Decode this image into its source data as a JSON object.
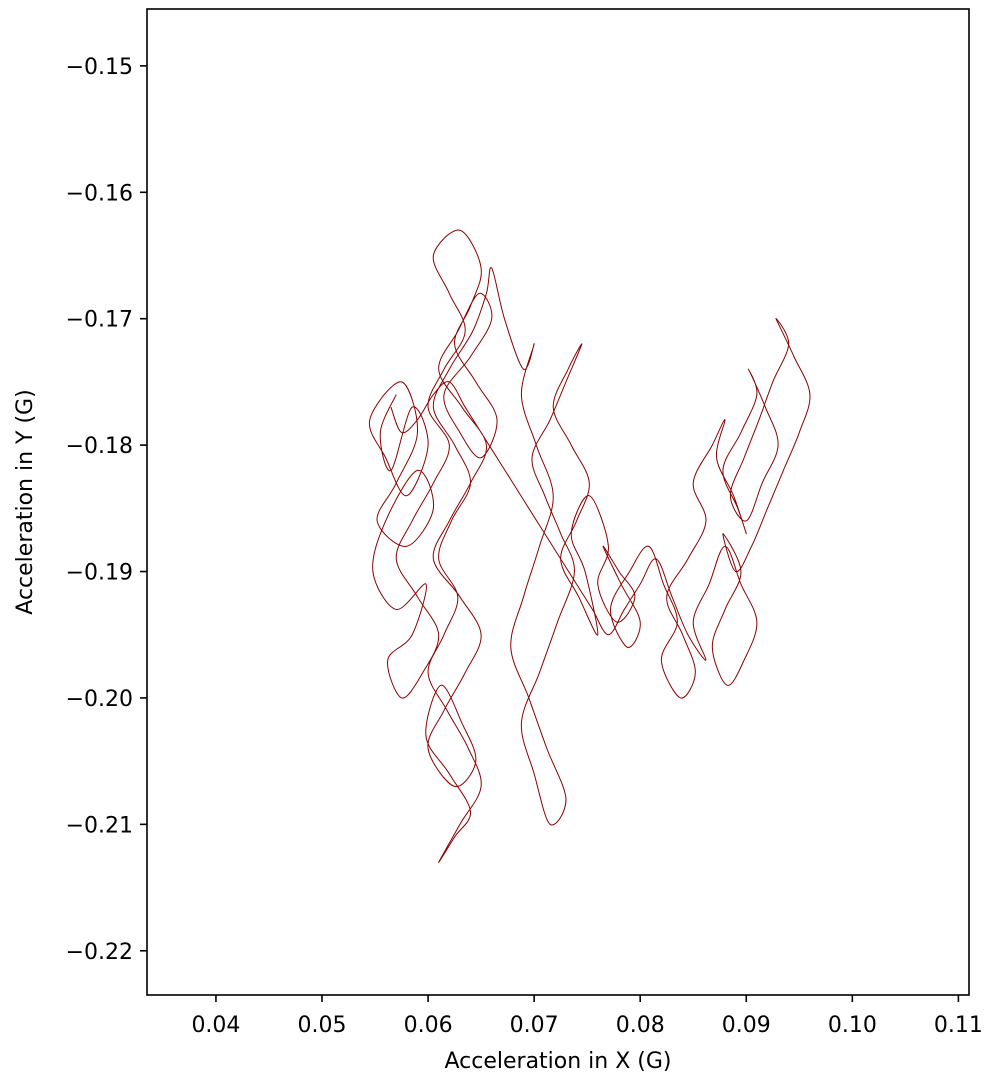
{
  "chart_data": {
    "type": "line",
    "xlabel": "Acceleration in X (G)",
    "ylabel": "Acceleration in Y (G)",
    "xlim": [
      0.0335,
      0.111
    ],
    "ylim": [
      -0.2235,
      -0.1455
    ],
    "xticks": [
      0.04,
      0.05,
      0.06,
      0.07,
      0.08,
      0.09,
      0.1,
      0.11
    ],
    "xtick_labels": [
      "0.04",
      "0.05",
      "0.06",
      "0.07",
      "0.08",
      "0.09",
      "0.10",
      "0.11"
    ],
    "yticks": [
      -0.15,
      -0.16,
      -0.17,
      -0.18,
      -0.19,
      -0.2,
      -0.21,
      -0.22
    ],
    "ytick_labels": [
      "−0.15",
      "−0.16",
      "−0.17",
      "−0.18",
      "−0.19",
      "−0.20",
      "−0.21",
      "−0.22"
    ],
    "grid": false,
    "series": [
      {
        "color": "#8b0000",
        "x": [
          0.057,
          0.0555,
          0.0565,
          0.0585,
          0.06,
          0.058,
          0.056,
          0.0545,
          0.0575,
          0.059,
          0.057,
          0.0552,
          0.058,
          0.0605,
          0.059,
          0.056,
          0.0548,
          0.057,
          0.0598,
          0.0585,
          0.0562,
          0.0575,
          0.0595,
          0.061,
          0.059,
          0.057,
          0.0585,
          0.0605,
          0.062,
          0.06,
          0.0615,
          0.0635,
          0.062,
          0.0605,
          0.063,
          0.065,
          0.064,
          0.0625,
          0.0645,
          0.0665,
          0.065,
          0.063,
          0.0615,
          0.064,
          0.066,
          0.0648,
          0.0628,
          0.061,
          0.0632,
          0.0655,
          0.064,
          0.062,
          0.0605,
          0.063,
          0.065,
          0.0635,
          0.0615,
          0.06,
          0.0625,
          0.0645,
          0.0632,
          0.0612,
          0.0598,
          0.062,
          0.064,
          0.0625,
          0.061,
          0.063,
          0.065,
          0.0638,
          0.0618,
          0.06,
          0.0615,
          0.0628,
          0.061,
          0.0622,
          0.064,
          0.0625,
          0.0605,
          0.062,
          0.0642,
          0.0655,
          0.066,
          0.0672,
          0.069,
          0.07,
          0.0688,
          0.0702,
          0.0718,
          0.0705,
          0.069,
          0.0678,
          0.0695,
          0.0712,
          0.073,
          0.0715,
          0.07,
          0.0688,
          0.0705,
          0.0722,
          0.0738,
          0.0725,
          0.071,
          0.0698,
          0.0715,
          0.073,
          0.0745,
          0.0732,
          0.0718,
          0.0735,
          0.0752,
          0.074,
          0.0725,
          0.0742,
          0.076,
          0.0748,
          0.0735,
          0.0752,
          0.077,
          0.076,
          0.0778,
          0.0795,
          0.078,
          0.0765,
          0.0782,
          0.08,
          0.0788,
          0.0772,
          0.079,
          0.0808,
          0.0822,
          0.0835,
          0.082,
          0.0838,
          0.0852,
          0.084,
          0.0825,
          0.0845,
          0.0862,
          0.085,
          0.0868,
          0.088,
          0.0872,
          0.0888,
          0.09,
          0.0892,
          0.0878,
          0.0895,
          0.091,
          0.0902,
          0.0918,
          0.093,
          0.0915,
          0.09,
          0.0885,
          0.0898,
          0.0912,
          0.0925,
          0.094,
          0.0928,
          0.0945,
          0.096,
          0.095,
          0.0935,
          0.092,
          0.0905,
          0.089,
          0.0878,
          0.0895,
          0.088,
          0.0868,
          0.0882,
          0.0898,
          0.091,
          0.0895,
          0.088,
          0.0865,
          0.085,
          0.0862,
          0.0845,
          0.083,
          0.0815,
          0.08,
          0.0785,
          0.077,
          0.0755,
          0.074,
          0.0725,
          0.071,
          0.0695,
          0.068,
          0.0665,
          0.065,
          0.0635,
          0.062,
          0.0605,
          0.059,
          0.0575,
          0.0565
        ],
        "y": [
          -0.176,
          -0.179,
          -0.182,
          -0.177,
          -0.18,
          -0.184,
          -0.181,
          -0.178,
          -0.175,
          -0.179,
          -0.183,
          -0.186,
          -0.188,
          -0.185,
          -0.182,
          -0.186,
          -0.19,
          -0.193,
          -0.191,
          -0.195,
          -0.197,
          -0.2,
          -0.198,
          -0.195,
          -0.192,
          -0.189,
          -0.186,
          -0.183,
          -0.18,
          -0.177,
          -0.174,
          -0.171,
          -0.168,
          -0.165,
          -0.163,
          -0.166,
          -0.169,
          -0.172,
          -0.175,
          -0.178,
          -0.181,
          -0.179,
          -0.176,
          -0.173,
          -0.17,
          -0.168,
          -0.171,
          -0.174,
          -0.177,
          -0.18,
          -0.183,
          -0.186,
          -0.189,
          -0.192,
          -0.195,
          -0.198,
          -0.201,
          -0.204,
          -0.207,
          -0.205,
          -0.202,
          -0.199,
          -0.203,
          -0.206,
          -0.209,
          -0.211,
          -0.213,
          -0.21,
          -0.207,
          -0.204,
          -0.201,
          -0.198,
          -0.195,
          -0.192,
          -0.189,
          -0.186,
          -0.183,
          -0.18,
          -0.177,
          -0.174,
          -0.171,
          -0.168,
          -0.166,
          -0.17,
          -0.174,
          -0.172,
          -0.176,
          -0.18,
          -0.184,
          -0.188,
          -0.192,
          -0.196,
          -0.2,
          -0.204,
          -0.208,
          -0.21,
          -0.206,
          -0.202,
          -0.198,
          -0.194,
          -0.19,
          -0.187,
          -0.184,
          -0.181,
          -0.178,
          -0.175,
          -0.172,
          -0.174,
          -0.177,
          -0.18,
          -0.183,
          -0.186,
          -0.189,
          -0.192,
          -0.195,
          -0.19,
          -0.187,
          -0.184,
          -0.188,
          -0.191,
          -0.194,
          -0.192,
          -0.19,
          -0.188,
          -0.191,
          -0.194,
          -0.196,
          -0.193,
          -0.19,
          -0.188,
          -0.191,
          -0.194,
          -0.197,
          -0.2,
          -0.198,
          -0.195,
          -0.192,
          -0.189,
          -0.186,
          -0.183,
          -0.18,
          -0.178,
          -0.181,
          -0.184,
          -0.187,
          -0.185,
          -0.182,
          -0.179,
          -0.176,
          -0.174,
          -0.177,
          -0.18,
          -0.183,
          -0.186,
          -0.184,
          -0.181,
          -0.178,
          -0.175,
          -0.172,
          -0.17,
          -0.173,
          -0.176,
          -0.179,
          -0.182,
          -0.185,
          -0.188,
          -0.19,
          -0.187,
          -0.19,
          -0.193,
          -0.196,
          -0.199,
          -0.197,
          -0.194,
          -0.191,
          -0.188,
          -0.191,
          -0.194,
          -0.197,
          -0.195,
          -0.192,
          -0.189,
          -0.191,
          -0.193,
          -0.195,
          -0.193,
          -0.191,
          -0.189,
          -0.187,
          -0.185,
          -0.183,
          -0.181,
          -0.179,
          -0.177,
          -0.175,
          -0.176,
          -0.178,
          -0.179,
          -0.177
        ]
      }
    ]
  }
}
